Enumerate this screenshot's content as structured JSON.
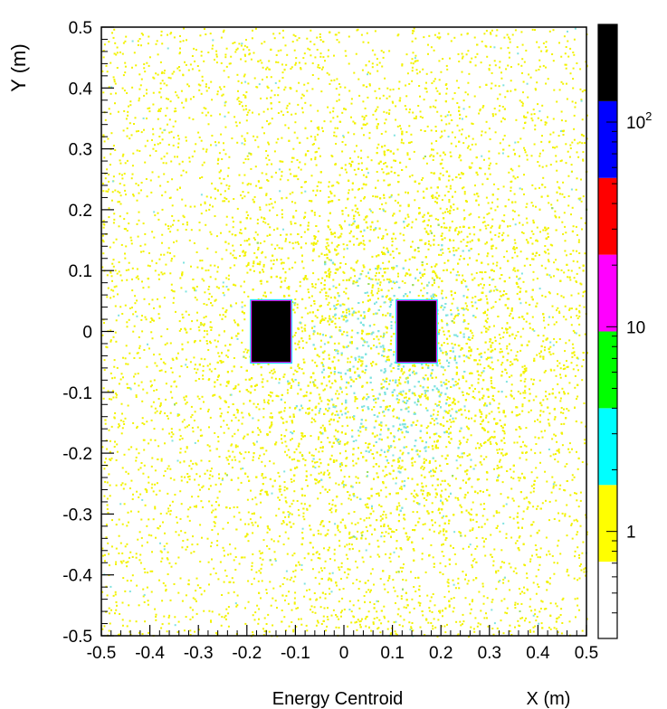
{
  "chart_data": {
    "type": "heatmap",
    "title": "",
    "xlabel": "X (m)",
    "xlabel_prefix": "Energy Centroid",
    "ylabel": "Y (m)",
    "xlim": [
      -0.5,
      0.5
    ],
    "ylim": [
      -0.5,
      0.5
    ],
    "x_ticks": [
      "-0.5",
      "-0.4",
      "-0.3",
      "-0.2",
      "-0.1",
      "0",
      "0.1",
      "0.2",
      "0.3",
      "0.4",
      "0.5"
    ],
    "y_ticks": [
      "0.5",
      "0.4",
      "0.3",
      "0.2",
      "0.1",
      "0",
      "-0.1",
      "-0.2",
      "-0.3",
      "-0.4",
      "-0.5"
    ],
    "x_tick_values": [
      -0.5,
      -0.4,
      -0.3,
      -0.2,
      -0.1,
      0,
      0.1,
      0.2,
      0.3,
      0.4,
      0.5
    ],
    "y_tick_values": [
      0.5,
      0.4,
      0.3,
      0.2,
      0.1,
      0,
      -0.1,
      -0.2,
      -0.3,
      -0.4,
      -0.5
    ],
    "colorbar": {
      "scale": "log",
      "range": [
        0.3,
        300
      ],
      "labels": [
        {
          "text": "1",
          "value": 1
        },
        {
          "text": "10",
          "value": 10
        },
        {
          "text": "10",
          "sup": "2",
          "value": 100
        }
      ],
      "colors": [
        "#ffffff",
        "#ffff00",
        "#00ffff",
        "#00ff00",
        "#ff00ff",
        "#ff0000",
        "#0000ff",
        "#000000"
      ]
    },
    "hotspots": [
      {
        "xrange": [
          -0.19,
          -0.11
        ],
        "yrange": [
          -0.05,
          0.05
        ],
        "level": ">100"
      },
      {
        "xrange": [
          0.11,
          0.19
        ],
        "yrange": [
          -0.05,
          0.05
        ],
        "level": ">100"
      }
    ],
    "background_distribution": {
      "center": [
        0.1,
        -0.05
      ],
      "description_level": "1-10"
    }
  }
}
